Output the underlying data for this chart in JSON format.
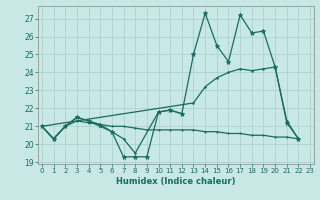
{
  "xlabel": "Humidex (Indice chaleur)",
  "bg_color": "#c8e8e5",
  "grid_color": "#a8ceca",
  "line_color": "#1a6b60",
  "xlim": [
    -0.3,
    23.3
  ],
  "ylim": [
    18.9,
    27.7
  ],
  "yticks": [
    19,
    20,
    21,
    22,
    23,
    24,
    25,
    26,
    27
  ],
  "xticks": [
    0,
    1,
    2,
    3,
    4,
    5,
    6,
    7,
    8,
    9,
    10,
    11,
    12,
    13,
    14,
    15,
    16,
    17,
    18,
    19,
    20,
    21,
    22,
    23
  ],
  "series": [
    {
      "x": [
        0,
        1,
        2,
        3,
        4,
        5,
        6,
        7,
        8,
        9,
        10,
        11,
        12,
        13,
        14,
        15,
        16,
        17,
        18,
        19,
        20,
        21,
        22
      ],
      "y": [
        21.0,
        20.3,
        21.0,
        21.5,
        21.3,
        21.1,
        20.7,
        19.3,
        19.3,
        19.3,
        21.8,
        21.9,
        21.7,
        25.0,
        27.3,
        25.5,
        24.6,
        27.2,
        26.2,
        26.3,
        24.3,
        21.2,
        20.3
      ],
      "marker": "*",
      "ms": 3.5,
      "lw": 0.9
    },
    {
      "x": [
        0,
        1,
        2,
        3,
        4,
        5,
        6,
        7,
        8,
        10,
        11,
        12
      ],
      "y": [
        21.0,
        20.3,
        21.0,
        21.5,
        21.3,
        21.0,
        20.7,
        20.3,
        19.5,
        21.8,
        21.9,
        21.7
      ],
      "marker": ".",
      "ms": 2.5,
      "lw": 0.9
    },
    {
      "x": [
        0,
        13,
        14,
        15,
        16,
        17,
        18,
        19,
        20,
        21,
        22
      ],
      "y": [
        21.0,
        22.3,
        23.2,
        23.7,
        24.0,
        24.2,
        24.1,
        24.2,
        24.3,
        21.3,
        20.3
      ],
      "marker": ".",
      "ms": 2.5,
      "lw": 0.9
    },
    {
      "x": [
        0,
        1,
        2,
        3,
        4,
        5,
        6,
        7,
        8,
        9,
        10,
        11,
        12,
        13,
        14,
        15,
        16,
        17,
        18,
        19,
        20,
        21,
        22
      ],
      "y": [
        21.0,
        20.3,
        21.0,
        21.3,
        21.2,
        21.1,
        21.0,
        21.0,
        20.9,
        20.8,
        20.8,
        20.8,
        20.8,
        20.8,
        20.7,
        20.7,
        20.6,
        20.6,
        20.5,
        20.5,
        20.4,
        20.4,
        20.3
      ],
      "marker": ".",
      "ms": 2,
      "lw": 0.9
    }
  ]
}
